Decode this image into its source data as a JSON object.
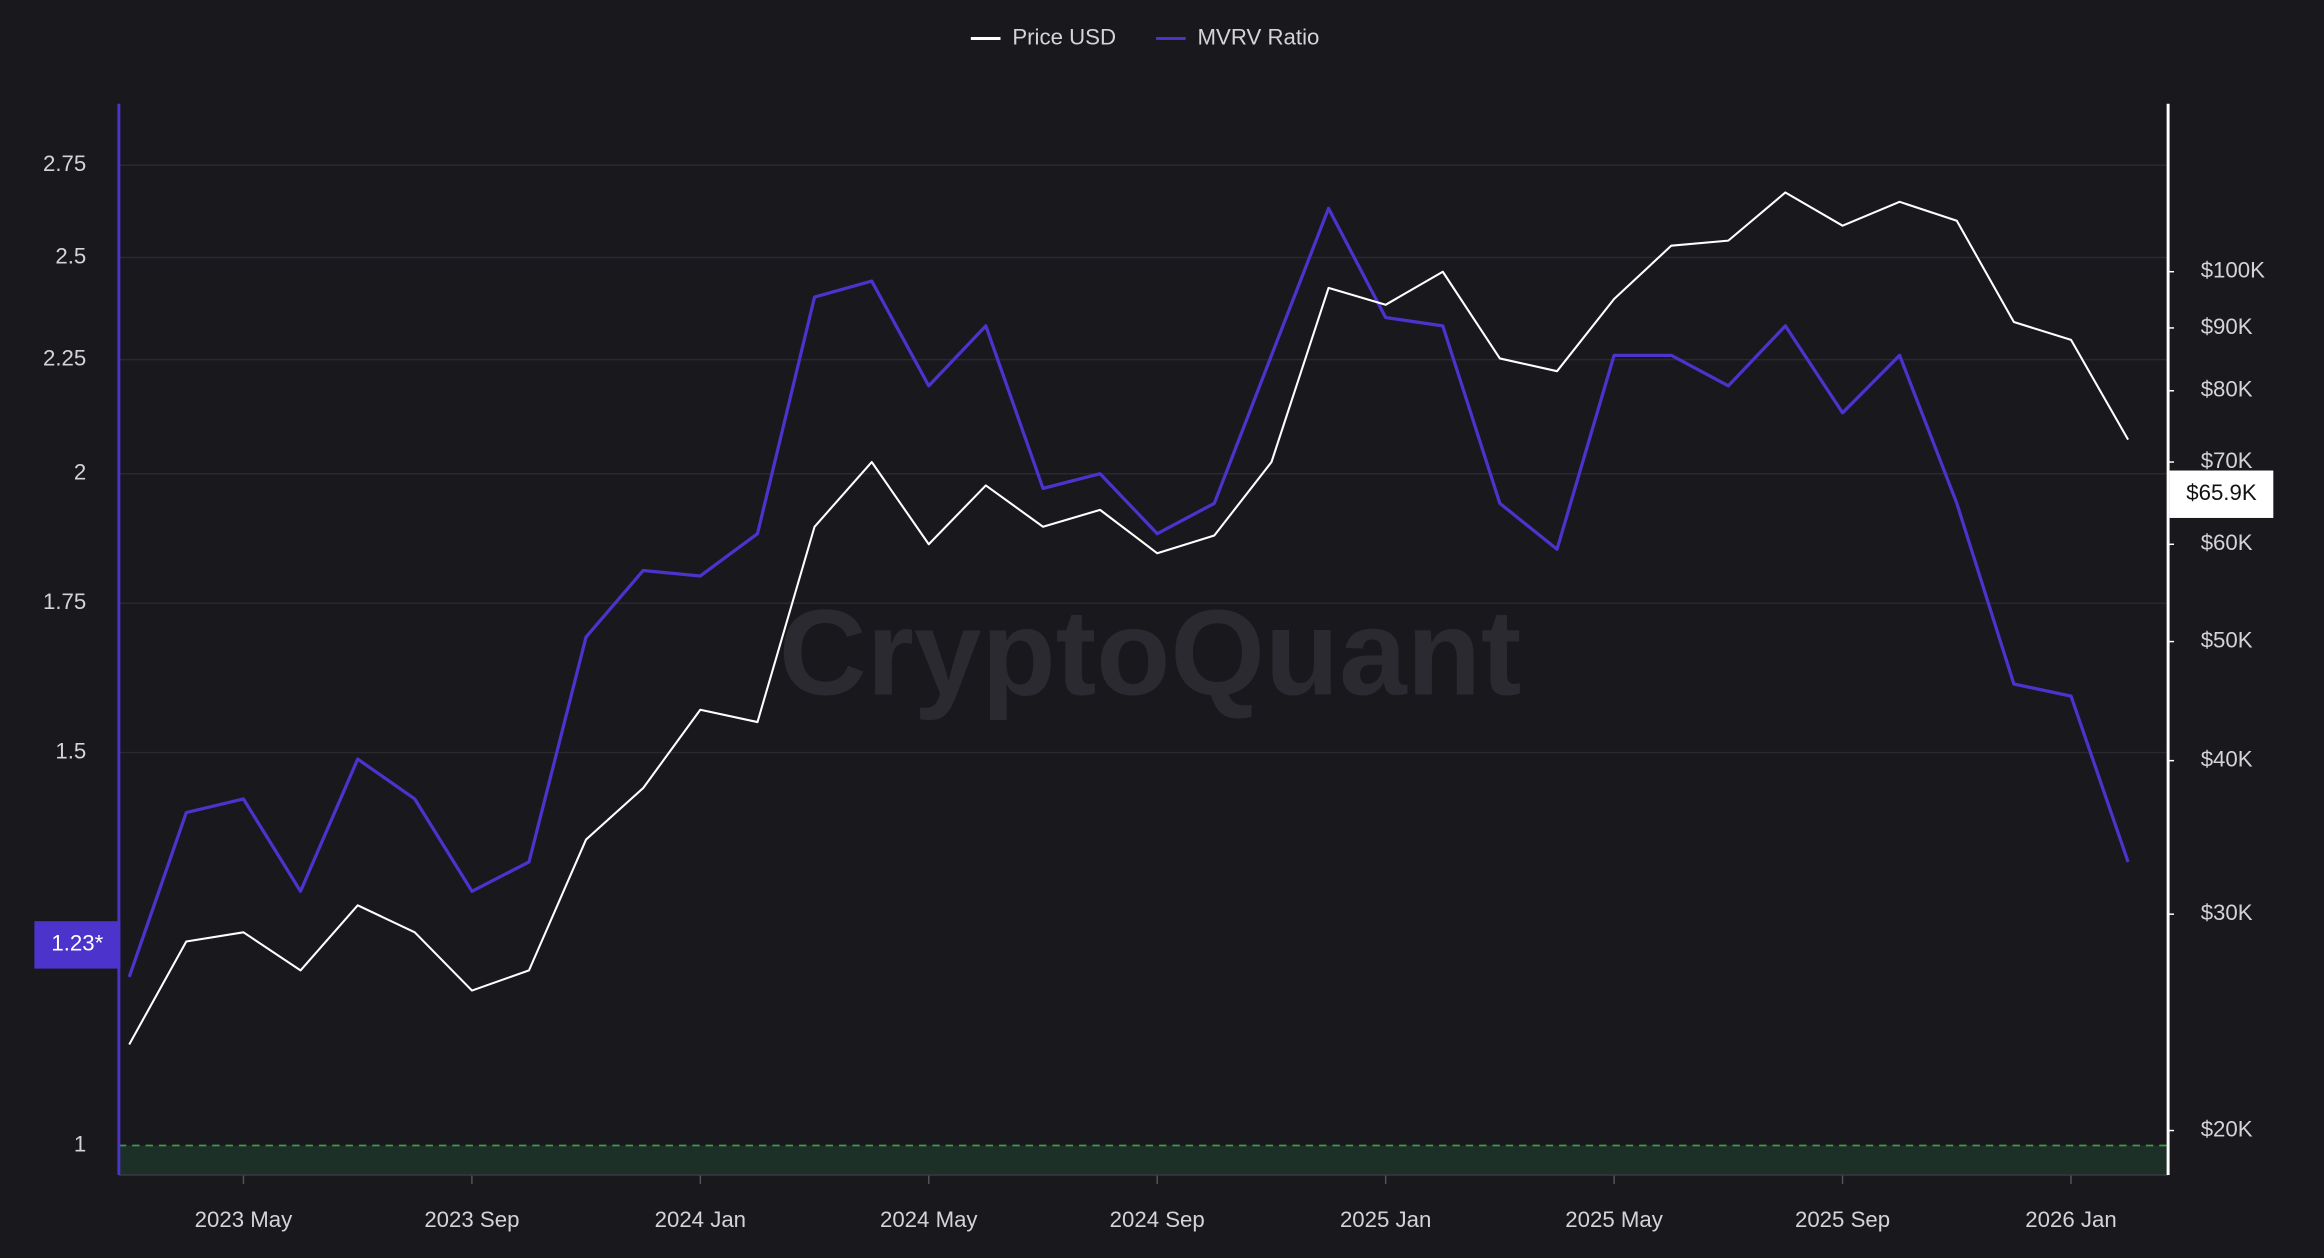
{
  "chart_data": {
    "type": "line",
    "watermark": "CryptoQuant",
    "x": [
      "2023-03",
      "2023-04",
      "2023-05",
      "2023-06",
      "2023-07",
      "2023-08",
      "2023-09",
      "2023-10",
      "2023-11",
      "2023-12",
      "2024-01",
      "2024-02",
      "2024-03",
      "2024-04",
      "2024-05",
      "2024-06",
      "2024-07",
      "2024-08",
      "2024-09",
      "2024-10",
      "2024-11",
      "2024-12",
      "2025-01",
      "2025-02",
      "2025-03",
      "2025-04",
      "2025-05",
      "2025-06",
      "2025-07",
      "2025-08",
      "2025-09",
      "2025-10",
      "2025-11",
      "2025-12",
      "2026-01",
      "2026-02"
    ],
    "xlim": [
      "2023-03",
      "2026-02"
    ],
    "xticks": [
      {
        "value": "2023-05",
        "label": "2023 May"
      },
      {
        "value": "2023-09",
        "label": "2023 Sep"
      },
      {
        "value": "2024-01",
        "label": "2024 Jan"
      },
      {
        "value": "2024-05",
        "label": "2024 May"
      },
      {
        "value": "2024-09",
        "label": "2024 Sep"
      },
      {
        "value": "2025-01",
        "label": "2025 Jan"
      },
      {
        "value": "2025-05",
        "label": "2025 May"
      },
      {
        "value": "2025-09",
        "label": "2025 Sep"
      },
      {
        "value": "2026-01",
        "label": "2026 Jan"
      }
    ],
    "ylog": true,
    "ylim": [
      0.97,
      2.93
    ],
    "yticks": [
      1,
      1.5,
      1.75,
      2,
      2.25,
      2.5,
      2.75
    ],
    "y2log": true,
    "y2lim": [
      18400,
      137000
    ],
    "y2ticks": [
      {
        "value": 20000,
        "label": "$20K"
      },
      {
        "value": 30000,
        "label": "$30K"
      },
      {
        "value": 40000,
        "label": "$40K"
      },
      {
        "value": 50000,
        "label": "$50K"
      },
      {
        "value": 60000,
        "label": "$60K"
      },
      {
        "value": 70000,
        "label": "$70K"
      },
      {
        "value": 80000,
        "label": "$80K"
      },
      {
        "value": 90000,
        "label": "$90K"
      },
      {
        "value": 100000,
        "label": "$100K"
      }
    ],
    "grid": true,
    "legend": "top",
    "series": [
      {
        "name": "MVRV Ratio",
        "color": "#4b33cc",
        "axis": "y",
        "values": [
          1.19,
          1.41,
          1.43,
          1.3,
          1.49,
          1.43,
          1.3,
          1.34,
          1.69,
          1.81,
          1.8,
          1.88,
          2.4,
          2.44,
          2.19,
          2.33,
          1.97,
          2.0,
          1.88,
          1.94,
          2.26,
          2.63,
          2.35,
          2.33,
          1.94,
          1.85,
          2.26,
          2.26,
          2.19,
          2.33,
          2.13,
          2.26,
          1.94,
          1.61,
          1.59,
          1.34
        ],
        "last_value": 1.23,
        "last_value_label": "1.23*"
      },
      {
        "name": "Price USD",
        "color": "#ffffff",
        "axis": "y2",
        "values": [
          23500,
          28500,
          29000,
          27000,
          30500,
          29000,
          26000,
          27000,
          34500,
          38000,
          44000,
          43000,
          62000,
          70000,
          60000,
          67000,
          62000,
          64000,
          59000,
          61000,
          70000,
          97000,
          94000,
          100000,
          85000,
          83000,
          95000,
          105000,
          106000,
          116000,
          109000,
          114000,
          110000,
          91000,
          88000,
          73000
        ],
        "last_value": 65900,
        "last_value_label": "$65.9K"
      }
    ]
  }
}
